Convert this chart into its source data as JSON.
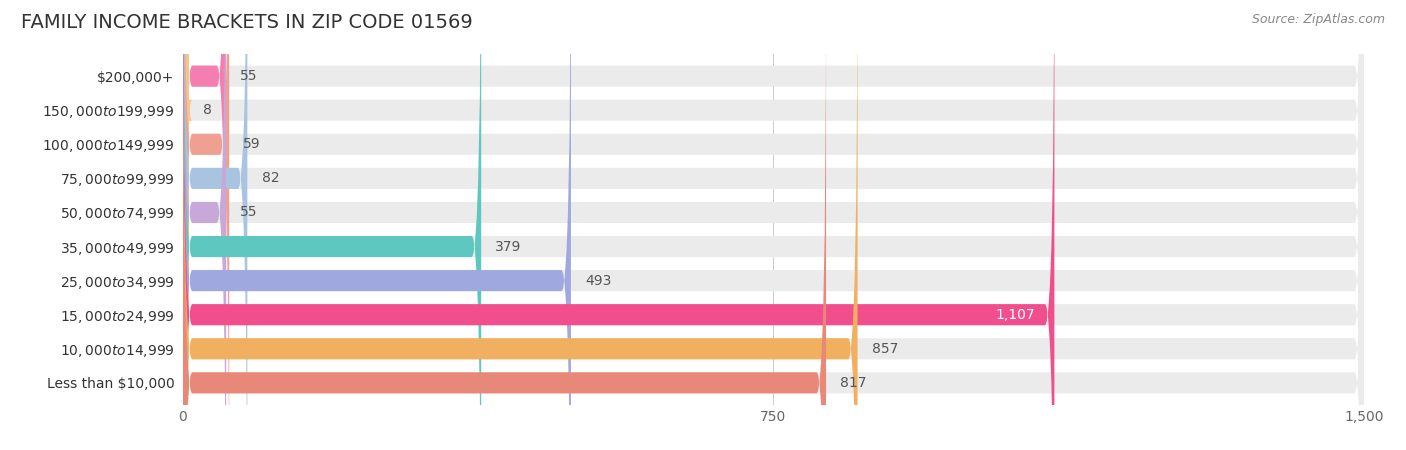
{
  "title": "FAMILY INCOME BRACKETS IN ZIP CODE 01569",
  "source": "Source: ZipAtlas.com",
  "categories": [
    "Less than $10,000",
    "$10,000 to $14,999",
    "$15,000 to $24,999",
    "$25,000 to $34,999",
    "$35,000 to $49,999",
    "$50,000 to $74,999",
    "$75,000 to $99,999",
    "$100,000 to $149,999",
    "$150,000 to $199,999",
    "$200,000+"
  ],
  "values": [
    55,
    8,
    59,
    82,
    55,
    379,
    493,
    1107,
    857,
    817
  ],
  "bar_colors": [
    "#f47eb0",
    "#f9c48a",
    "#f0a090",
    "#a8c4e0",
    "#c8a8d8",
    "#5ec8c0",
    "#a0a8e0",
    "#f04e8c",
    "#f0b060",
    "#e88878"
  ],
  "xlim": [
    0,
    1500
  ],
  "xticks": [
    0,
    750,
    1500
  ],
  "bar_bg_color": "#ebebeb",
  "title_fontsize": 14,
  "label_fontsize": 10,
  "value_fontsize": 10,
  "value_label_1107_color": "#ffffff"
}
